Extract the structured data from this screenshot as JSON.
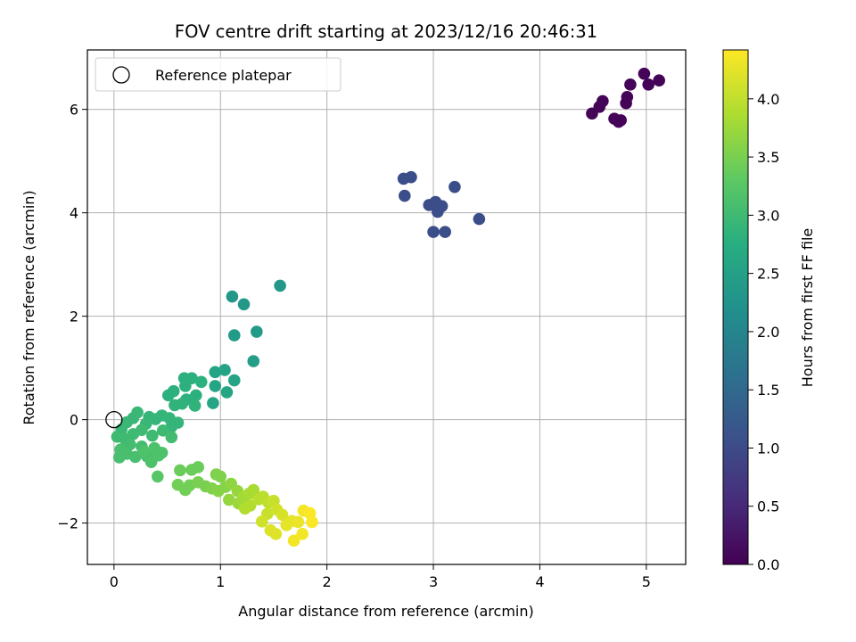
{
  "chart_data": {
    "type": "scatter",
    "title": "FOV centre drift starting at 2023/12/16 20:46:31",
    "xlabel": "Angular distance from reference (arcmin)",
    "ylabel": "Rotation from reference (arcmin)",
    "xlim": [
      -0.25,
      5.37
    ],
    "ylim": [
      -2.8,
      7.15
    ],
    "xticks": [
      0,
      1,
      2,
      3,
      4,
      5
    ],
    "yticks": [
      -2,
      0,
      2,
      4,
      6
    ],
    "xtick_labels": [
      "0",
      "1",
      "2",
      "3",
      "4",
      "5"
    ],
    "ytick_labels": [
      "−2",
      "0",
      "2",
      "4",
      "6"
    ],
    "grid": true,
    "legend": {
      "placement": "top-left",
      "entries": [
        "Reference platepar"
      ]
    },
    "reference_point": {
      "x": 0,
      "y": 0
    },
    "colorbar": {
      "label": "Hours from first FF file",
      "colormap": "viridis",
      "range": [
        0.0,
        4.42
      ],
      "ticks": [
        0.0,
        0.5,
        1.0,
        1.5,
        2.0,
        2.5,
        3.0,
        3.5,
        4.0
      ],
      "tick_labels": [
        "0.0",
        "0.5",
        "1.0",
        "1.5",
        "2.0",
        "2.5",
        "3.0",
        "3.5",
        "4.0"
      ]
    },
    "points": [
      {
        "x": 4.49,
        "y": 5.92,
        "h": 0.05
      },
      {
        "x": 4.56,
        "y": 6.05,
        "h": 0.05
      },
      {
        "x": 4.59,
        "y": 6.16,
        "h": 0.05
      },
      {
        "x": 4.7,
        "y": 5.82,
        "h": 0.05
      },
      {
        "x": 4.74,
        "y": 5.76,
        "h": 0.05
      },
      {
        "x": 4.76,
        "y": 5.79,
        "h": 0.05
      },
      {
        "x": 4.81,
        "y": 6.12,
        "h": 0.05
      },
      {
        "x": 4.82,
        "y": 6.24,
        "h": 0.05
      },
      {
        "x": 4.85,
        "y": 6.48,
        "h": 0.05
      },
      {
        "x": 4.98,
        "y": 6.69,
        "h": 0.05
      },
      {
        "x": 5.02,
        "y": 6.48,
        "h": 0.05
      },
      {
        "x": 5.12,
        "y": 6.56,
        "h": 0.05
      },
      {
        "x": 2.72,
        "y": 4.66,
        "h": 1.05
      },
      {
        "x": 2.79,
        "y": 4.69,
        "h": 1.05
      },
      {
        "x": 2.73,
        "y": 4.33,
        "h": 1.05
      },
      {
        "x": 2.96,
        "y": 4.15,
        "h": 1.05
      },
      {
        "x": 3.02,
        "y": 4.21,
        "h": 1.05
      },
      {
        "x": 3.08,
        "y": 4.13,
        "h": 1.05
      },
      {
        "x": 3.04,
        "y": 4.02,
        "h": 1.05
      },
      {
        "x": 3.2,
        "y": 4.5,
        "h": 1.05
      },
      {
        "x": 3.43,
        "y": 3.88,
        "h": 1.05
      },
      {
        "x": 3.0,
        "y": 3.63,
        "h": 1.05
      },
      {
        "x": 3.11,
        "y": 3.63,
        "h": 1.05
      },
      {
        "x": 1.11,
        "y": 2.38,
        "h": 2.35
      },
      {
        "x": 1.22,
        "y": 2.23,
        "h": 2.35
      },
      {
        "x": 1.56,
        "y": 2.59,
        "h": 2.35
      },
      {
        "x": 1.13,
        "y": 1.63,
        "h": 2.4
      },
      {
        "x": 1.34,
        "y": 1.7,
        "h": 2.4
      },
      {
        "x": 1.31,
        "y": 1.13,
        "h": 2.45
      },
      {
        "x": 0.95,
        "y": 0.92,
        "h": 2.55
      },
      {
        "x": 1.04,
        "y": 0.96,
        "h": 2.55
      },
      {
        "x": 1.13,
        "y": 0.76,
        "h": 2.55
      },
      {
        "x": 0.95,
        "y": 0.65,
        "h": 2.6
      },
      {
        "x": 1.06,
        "y": 0.53,
        "h": 2.6
      },
      {
        "x": 0.93,
        "y": 0.32,
        "h": 2.6
      },
      {
        "x": 0.66,
        "y": 0.8,
        "h": 2.8
      },
      {
        "x": 0.73,
        "y": 0.8,
        "h": 2.8
      },
      {
        "x": 0.82,
        "y": 0.73,
        "h": 2.8
      },
      {
        "x": 0.67,
        "y": 0.65,
        "h": 2.8
      },
      {
        "x": 0.56,
        "y": 0.55,
        "h": 2.8
      },
      {
        "x": 0.51,
        "y": 0.47,
        "h": 2.8
      },
      {
        "x": 0.77,
        "y": 0.47,
        "h": 2.8
      },
      {
        "x": 0.68,
        "y": 0.39,
        "h": 2.8
      },
      {
        "x": 0.57,
        "y": 0.28,
        "h": 2.85
      },
      {
        "x": 0.64,
        "y": 0.31,
        "h": 2.85
      },
      {
        "x": 0.76,
        "y": 0.27,
        "h": 2.85
      },
      {
        "x": 0.45,
        "y": 0.08,
        "h": 2.9
      },
      {
        "x": 0.52,
        "y": 0.03,
        "h": 2.9
      },
      {
        "x": 0.6,
        "y": -0.06,
        "h": 2.9
      },
      {
        "x": 0.54,
        "y": -0.14,
        "h": 2.9
      },
      {
        "x": 0.39,
        "y": 0.01,
        "h": 2.9
      },
      {
        "x": 0.33,
        "y": 0.05,
        "h": 2.9
      },
      {
        "x": 0.3,
        "y": -0.08,
        "h": 2.95
      },
      {
        "x": 0.22,
        "y": 0.14,
        "h": 2.95
      },
      {
        "x": 0.18,
        "y": 0.03,
        "h": 2.95
      },
      {
        "x": 0.12,
        "y": -0.05,
        "h": 2.95
      },
      {
        "x": 0.07,
        "y": -0.19,
        "h": 2.95
      },
      {
        "x": 0.03,
        "y": -0.33,
        "h": 3.0
      },
      {
        "x": 0.1,
        "y": -0.37,
        "h": 3.0
      },
      {
        "x": 0.18,
        "y": -0.28,
        "h": 3.0
      },
      {
        "x": 0.26,
        "y": -0.2,
        "h": 3.0
      },
      {
        "x": 0.36,
        "y": -0.31,
        "h": 3.0
      },
      {
        "x": 0.46,
        "y": -0.21,
        "h": 3.0
      },
      {
        "x": 0.54,
        "y": -0.34,
        "h": 3.05
      },
      {
        "x": 0.15,
        "y": -0.48,
        "h": 3.05
      },
      {
        "x": 0.26,
        "y": -0.52,
        "h": 3.05
      },
      {
        "x": 0.06,
        "y": -0.58,
        "h": 3.1
      },
      {
        "x": 0.12,
        "y": -0.66,
        "h": 3.1
      },
      {
        "x": 0.2,
        "y": -0.72,
        "h": 3.1
      },
      {
        "x": 0.05,
        "y": -0.73,
        "h": 3.1
      },
      {
        "x": 0.31,
        "y": -0.71,
        "h": 3.1
      },
      {
        "x": 0.35,
        "y": -0.82,
        "h": 3.15
      },
      {
        "x": 0.42,
        "y": -0.69,
        "h": 3.15
      },
      {
        "x": 0.45,
        "y": -0.64,
        "h": 3.15
      },
      {
        "x": 0.38,
        "y": -0.55,
        "h": 3.15
      },
      {
        "x": 0.28,
        "y": -0.61,
        "h": 3.15
      },
      {
        "x": 0.41,
        "y": -1.1,
        "h": 3.25
      },
      {
        "x": 0.62,
        "y": -0.98,
        "h": 3.4
      },
      {
        "x": 0.73,
        "y": -0.97,
        "h": 3.4
      },
      {
        "x": 0.79,
        "y": -0.92,
        "h": 3.4
      },
      {
        "x": 0.6,
        "y": -1.26,
        "h": 3.45
      },
      {
        "x": 0.67,
        "y": -1.36,
        "h": 3.45
      },
      {
        "x": 0.71,
        "y": -1.27,
        "h": 3.45
      },
      {
        "x": 0.79,
        "y": -1.21,
        "h": 3.5
      },
      {
        "x": 0.86,
        "y": -1.29,
        "h": 3.5
      },
      {
        "x": 0.92,
        "y": -1.33,
        "h": 3.55
      },
      {
        "x": 0.96,
        "y": -1.06,
        "h": 3.55
      },
      {
        "x": 1.0,
        "y": -1.1,
        "h": 3.55
      },
      {
        "x": 0.98,
        "y": -1.38,
        "h": 3.6
      },
      {
        "x": 1.05,
        "y": -1.3,
        "h": 3.6
      },
      {
        "x": 1.1,
        "y": -1.24,
        "h": 3.65
      },
      {
        "x": 1.16,
        "y": -1.38,
        "h": 3.7
      },
      {
        "x": 1.08,
        "y": -1.55,
        "h": 3.7
      },
      {
        "x": 1.17,
        "y": -1.62,
        "h": 3.75
      },
      {
        "x": 1.22,
        "y": -1.49,
        "h": 3.8
      },
      {
        "x": 1.27,
        "y": -1.43,
        "h": 3.85
      },
      {
        "x": 1.31,
        "y": -1.36,
        "h": 3.85
      },
      {
        "x": 1.23,
        "y": -1.72,
        "h": 3.9
      },
      {
        "x": 1.28,
        "y": -1.66,
        "h": 3.9
      },
      {
        "x": 1.36,
        "y": -1.54,
        "h": 3.95
      },
      {
        "x": 1.4,
        "y": -1.49,
        "h": 3.95
      },
      {
        "x": 1.45,
        "y": -1.6,
        "h": 4.0
      },
      {
        "x": 1.5,
        "y": -1.57,
        "h": 4.05
      },
      {
        "x": 1.44,
        "y": -1.82,
        "h": 4.05
      },
      {
        "x": 1.39,
        "y": -1.97,
        "h": 4.1
      },
      {
        "x": 1.53,
        "y": -1.74,
        "h": 4.1
      },
      {
        "x": 1.58,
        "y": -1.84,
        "h": 4.15
      },
      {
        "x": 1.47,
        "y": -2.14,
        "h": 4.2
      },
      {
        "x": 1.52,
        "y": -2.21,
        "h": 4.2
      },
      {
        "x": 1.62,
        "y": -2.04,
        "h": 4.25
      },
      {
        "x": 1.67,
        "y": -1.96,
        "h": 4.25
      },
      {
        "x": 1.73,
        "y": -1.98,
        "h": 4.3
      },
      {
        "x": 1.69,
        "y": -2.34,
        "h": 4.35
      },
      {
        "x": 1.77,
        "y": -2.21,
        "h": 4.35
      },
      {
        "x": 1.78,
        "y": -1.76,
        "h": 4.35
      },
      {
        "x": 1.84,
        "y": -1.81,
        "h": 4.4
      },
      {
        "x": 1.86,
        "y": -1.98,
        "h": 4.4
      }
    ]
  }
}
